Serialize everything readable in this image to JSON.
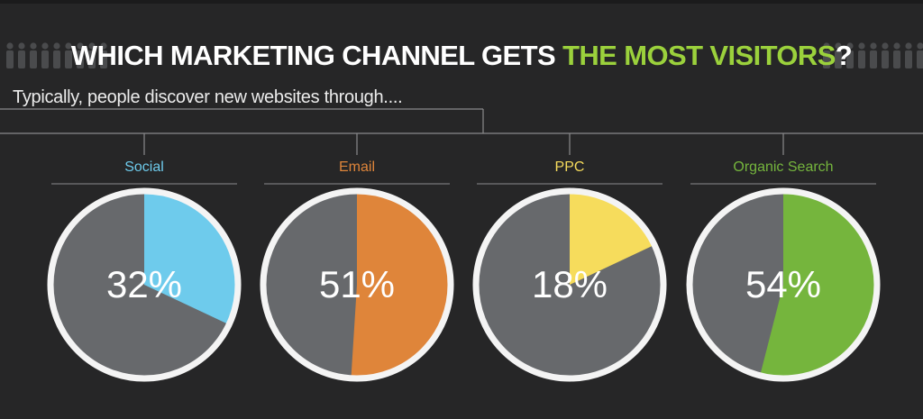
{
  "title": {
    "part1": "WHICH MARKETING CHANNEL GETS ",
    "part2": "THE MOST VISITORS",
    "part3": "?"
  },
  "subtitle": "Typically, people discover new websites through....",
  "colors": {
    "background": "#262627",
    "slice_rest": "#67696c",
    "ring": "#f4f4f4",
    "highlight_green": "#9bd13c"
  },
  "chart_data": {
    "type": "pie",
    "title": "WHICH MARKETING CHANNEL GETS THE MOST VISITORS?",
    "series": [
      {
        "name": "Social",
        "value": 32,
        "label": "32%",
        "color": "#6ecbec"
      },
      {
        "name": "Email",
        "value": 51,
        "label": "51%",
        "color": "#df853a"
      },
      {
        "name": "PPC",
        "value": 18,
        "label": "18%",
        "color": "#f6dc5c"
      },
      {
        "name": "Organic Search",
        "value": 54,
        "label": "54%",
        "color": "#75b53d"
      }
    ]
  }
}
